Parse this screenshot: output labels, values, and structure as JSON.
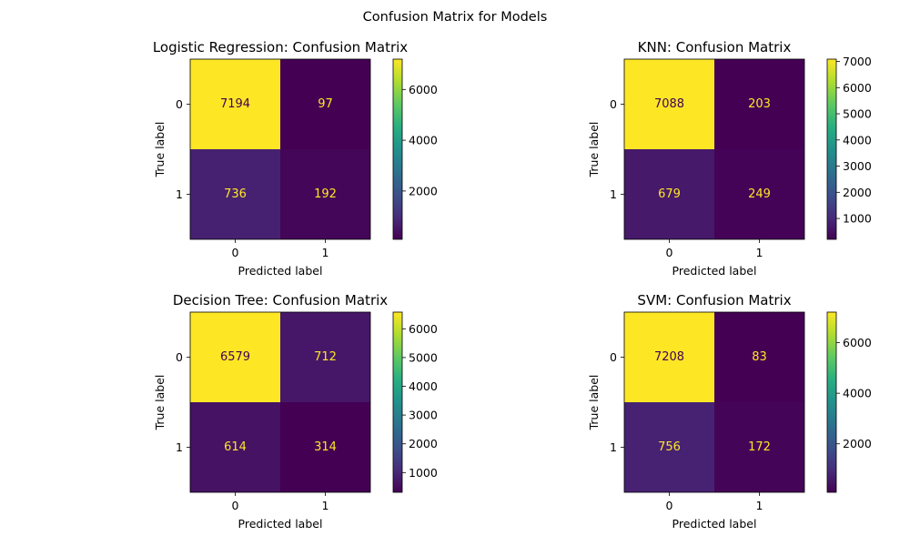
{
  "figure": {
    "suptitle": "Confusion Matrix for Models"
  },
  "chart_data": [
    {
      "type": "heatmap",
      "title": "Logistic Regression: Confusion Matrix",
      "xlabel": "Predicted label",
      "ylabel": "True label",
      "x_ticks": [
        "0",
        "1"
      ],
      "y_ticks": [
        "0",
        "1"
      ],
      "values": [
        [
          7194,
          97
        ],
        [
          736,
          192
        ]
      ],
      "colormap": "viridis",
      "colorbar": {
        "min": 97,
        "max": 7194,
        "ticks": [
          2000,
          4000,
          6000
        ]
      }
    },
    {
      "type": "heatmap",
      "title": "KNN: Confusion Matrix",
      "xlabel": "Predicted label",
      "ylabel": "True label",
      "x_ticks": [
        "0",
        "1"
      ],
      "y_ticks": [
        "0",
        "1"
      ],
      "values": [
        [
          7088,
          203
        ],
        [
          679,
          249
        ]
      ],
      "colormap": "viridis",
      "colorbar": {
        "min": 203,
        "max": 7088,
        "ticks": [
          1000,
          2000,
          3000,
          4000,
          5000,
          6000,
          7000
        ]
      }
    },
    {
      "type": "heatmap",
      "title": "Decision Tree: Confusion Matrix",
      "xlabel": "Predicted label",
      "ylabel": "True label",
      "x_ticks": [
        "0",
        "1"
      ],
      "y_ticks": [
        "0",
        "1"
      ],
      "values": [
        [
          6579,
          712
        ],
        [
          614,
          314
        ]
      ],
      "colormap": "viridis",
      "colorbar": {
        "min": 314,
        "max": 6579,
        "ticks": [
          1000,
          2000,
          3000,
          4000,
          5000,
          6000
        ]
      }
    },
    {
      "type": "heatmap",
      "title": "SVM: Confusion Matrix",
      "xlabel": "Predicted label",
      "ylabel": "True label",
      "x_ticks": [
        "0",
        "1"
      ],
      "y_ticks": [
        "0",
        "1"
      ],
      "values": [
        [
          7208,
          83
        ],
        [
          756,
          172
        ]
      ],
      "colormap": "viridis",
      "colorbar": {
        "min": 83,
        "max": 7208,
        "ticks": [
          2000,
          4000,
          6000
        ]
      }
    }
  ]
}
